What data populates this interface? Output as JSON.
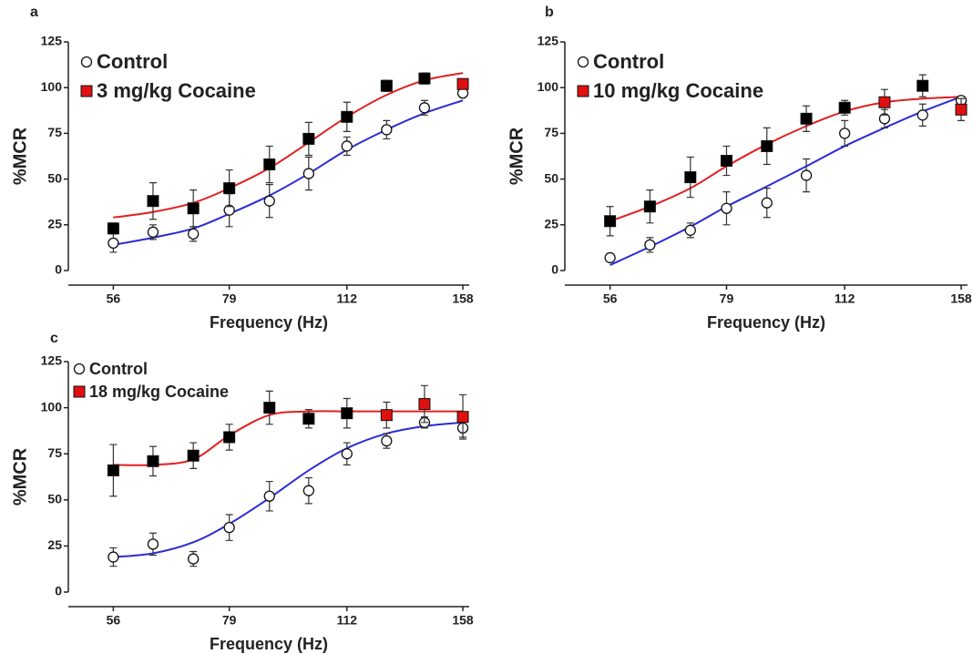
{
  "chart_data": [
    {
      "type": "scatter",
      "panel": "a",
      "xlabel": "Frequency (Hz)",
      "ylabel": "%MCR",
      "x": [
        56,
        63,
        71,
        79,
        89,
        100,
        112,
        126,
        141,
        158
      ],
      "xlim": [
        49,
        161
      ],
      "xticks": [
        56,
        79,
        112,
        158
      ],
      "xscale": "log",
      "ylim": [
        0,
        125
      ],
      "yticks": [
        0,
        25,
        50,
        75,
        100,
        125
      ],
      "series": [
        {
          "name": "Control",
          "marker": "circle",
          "color": "#ffffff",
          "line_color": "#2b2bd6",
          "values": [
            15,
            21,
            20,
            33,
            38,
            53,
            68,
            77,
            89,
            97
          ],
          "errors": [
            5,
            4,
            4,
            9,
            9,
            9,
            5,
            5,
            4,
            2
          ],
          "fit": [
            14,
            18,
            23,
            31,
            41,
            53,
            66,
            77,
            86,
            93
          ]
        },
        {
          "name": "3 mg/kg Cocaine",
          "marker": "square",
          "color": "#e01010",
          "line_color": "#e02020",
          "values": [
            23,
            38,
            34,
            45,
            58,
            72,
            84,
            101,
            105,
            102
          ],
          "errors": [
            3,
            10,
            10,
            10,
            10,
            9,
            8,
            3,
            3,
            2
          ],
          "point_colors": [
            "#000000",
            "#000000",
            "#000000",
            "#000000",
            "#000000",
            "#000000",
            "#000000",
            "#000000",
            "#000000",
            "#e01010"
          ],
          "fit": [
            29,
            32,
            37,
            45,
            56,
            70,
            84,
            96,
            104,
            108
          ]
        }
      ]
    },
    {
      "type": "scatter",
      "panel": "b",
      "xlabel": "Frequency (Hz)",
      "ylabel": "%MCR",
      "x": [
        56,
        63,
        71,
        79,
        89,
        100,
        112,
        126,
        141,
        158
      ],
      "xlim": [
        49,
        161
      ],
      "xticks": [
        56,
        79,
        112,
        158
      ],
      "xscale": "log",
      "ylim": [
        0,
        125
      ],
      "yticks": [
        0,
        25,
        50,
        75,
        100,
        125
      ],
      "series": [
        {
          "name": "Control",
          "marker": "circle",
          "color": "#ffffff",
          "line_color": "#2b2bd6",
          "values": [
            7,
            14,
            22,
            34,
            37,
            52,
            75,
            83,
            85,
            93
          ],
          "errors": [
            1,
            4,
            4,
            9,
            8,
            9,
            7,
            5,
            6,
            1
          ],
          "fit": [
            3,
            13,
            24,
            35,
            46,
            57,
            68,
            78,
            87,
            95
          ]
        },
        {
          "name": "10 mg/kg Cocaine",
          "marker": "square",
          "color": "#e01010",
          "line_color": "#e02020",
          "values": [
            27,
            35,
            51,
            60,
            68,
            83,
            89,
            92,
            101,
            88
          ],
          "errors": [
            8,
            9,
            11,
            8,
            10,
            7,
            4,
            7,
            6,
            6
          ],
          "point_colors": [
            "#000000",
            "#000000",
            "#000000",
            "#000000",
            "#000000",
            "#000000",
            "#000000",
            "#e01010",
            "#000000",
            "#e01010"
          ],
          "fit": [
            27,
            35,
            45,
            57,
            69,
            79,
            87,
            92,
            94,
            95
          ]
        }
      ]
    },
    {
      "type": "scatter",
      "panel": "c",
      "xlabel": "Frequency (Hz)",
      "ylabel": "%MCR",
      "x": [
        56,
        63,
        71,
        79,
        89,
        100,
        112,
        126,
        141,
        158
      ],
      "xlim": [
        49,
        161
      ],
      "xticks": [
        56,
        79,
        112,
        158
      ],
      "xscale": "log",
      "ylim": [
        0,
        125
      ],
      "yticks": [
        0,
        25,
        50,
        75,
        100,
        125
      ],
      "series": [
        {
          "name": "Control",
          "marker": "circle",
          "color": "#ffffff",
          "line_color": "#2b2bd6",
          "values": [
            19,
            26,
            18,
            35,
            52,
            55,
            75,
            82,
            92,
            89
          ],
          "errors": [
            5,
            6,
            4,
            7,
            8,
            7,
            6,
            4,
            3,
            5
          ],
          "fit": [
            19,
            21,
            27,
            37,
            51,
            66,
            78,
            86,
            90,
            92
          ]
        },
        {
          "name": "18 mg/kg Cocaine",
          "marker": "square",
          "color": "#e01010",
          "line_color": "#e02020",
          "values": [
            66,
            71,
            74,
            84,
            100,
            94,
            97,
            96,
            102,
            95
          ],
          "errors": [
            14,
            8,
            7,
            7,
            9,
            5,
            8,
            7,
            10,
            12
          ],
          "point_colors": [
            "#000000",
            "#000000",
            "#000000",
            "#000000",
            "#000000",
            "#000000",
            "#000000",
            "#e01010",
            "#e01010",
            "#e01010"
          ],
          "fit": [
            69,
            69,
            72,
            85,
            96,
            98,
            98,
            98,
            98,
            98
          ]
        }
      ]
    }
  ]
}
